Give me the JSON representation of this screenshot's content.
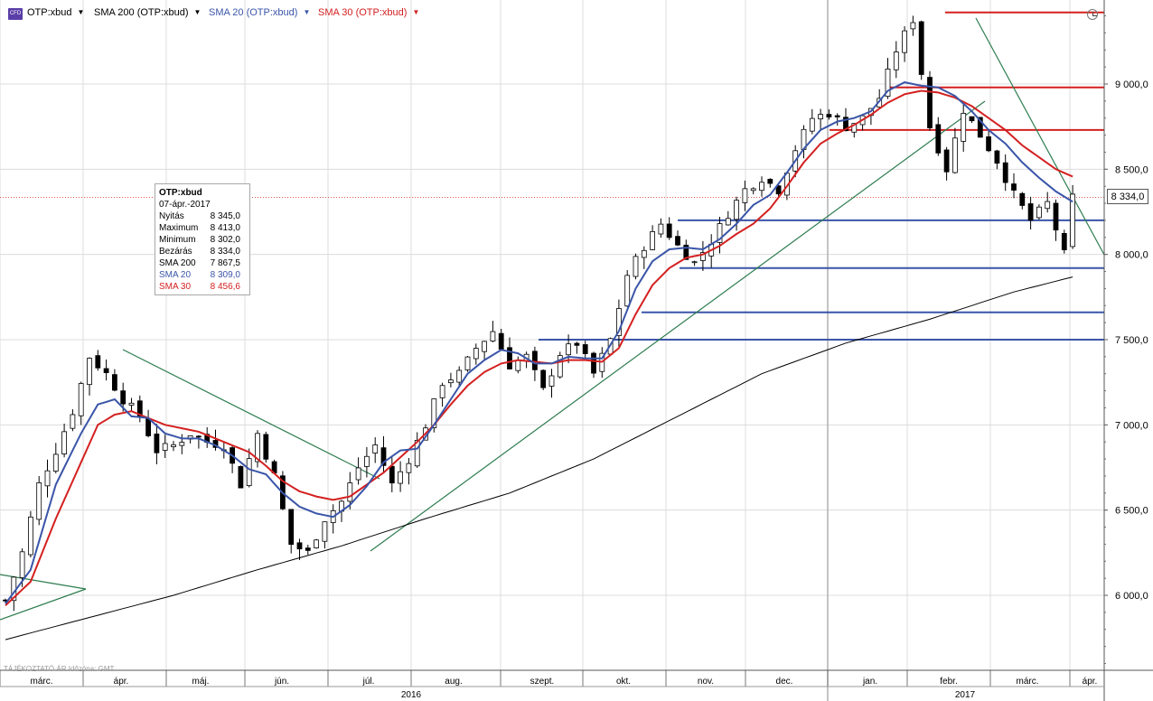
{
  "toolbar": {
    "logo_text": "CFD",
    "tickers": [
      {
        "label": "OTP:xbud",
        "color": "#000000"
      },
      {
        "label": "SMA 200 (OTP:xbud)",
        "color": "#000000"
      },
      {
        "label": "SMA 20 (OTP:xbud)",
        "color": "#3a55a8"
      },
      {
        "label": "SMA 30 (OTP:xbud)",
        "color": "#d42020"
      }
    ],
    "dropdown_glyph": "▼",
    "clock_icon": "clock-icon"
  },
  "tooltip": {
    "title": "OTP:xbud",
    "date": "07-ápr.-2017",
    "rows": [
      {
        "label": "Nyitás",
        "value": "8 345,0",
        "color": "#000000"
      },
      {
        "label": "Maximum",
        "value": "8 413,0",
        "color": "#000000"
      },
      {
        "label": "Minimum",
        "value": "8 302,0",
        "color": "#000000"
      },
      {
        "label": "Bezárás",
        "value": "8 334,0",
        "color": "#000000"
      },
      {
        "label": "SMA 200",
        "value": "7 867,5",
        "color": "#000000"
      },
      {
        "label": "SMA 20",
        "value": "8 309,0",
        "color": "#3a55a8"
      },
      {
        "label": "SMA 30",
        "value": "8 456,6",
        "color": "#d42020"
      }
    ]
  },
  "footer_note": "TÁJÉKOZTATÓ ÁR   Időzóna: GMT",
  "price_tag": "8 334,0",
  "chart_data": {
    "type": "line",
    "instrument": "OTP:xbud",
    "y_ticks": [
      "6 000,0",
      "6 500,0",
      "7 000,0",
      "7 500,0",
      "8 000,0",
      "8 500,0",
      "9 000,0"
    ],
    "y_tick_values": [
      6000,
      6500,
      7000,
      7500,
      8000,
      8500,
      9000
    ],
    "ylim": [
      5530,
      9480
    ],
    "x_months": [
      "márc.",
      "ápr.",
      "máj.",
      "jún.",
      "júl.",
      "aug.",
      "szept.",
      "okt.",
      "nov.",
      "dec.",
      "jan.",
      "febr.",
      "márc.",
      "ápr."
    ],
    "x_years": [
      "2016",
      "2017"
    ],
    "last_close": 8334,
    "colors": {
      "price": "#000000",
      "sma200": "#000000",
      "sma20": "#3a55a8",
      "sma30": "#d42020",
      "horizontal_blue": "#3a55a8",
      "horizontal_red": "#d42020",
      "trendline": "#2e7d4f",
      "candle_up": "#ffffff",
      "candle_down": "#000000"
    },
    "close_path": [
      [
        0,
        5970
      ],
      [
        2,
        6250
      ],
      [
        4,
        6650
      ],
      [
        6,
        6850
      ],
      [
        8,
        7080
      ],
      [
        10,
        7400
      ],
      [
        12,
        7300
      ],
      [
        14,
        7150
      ],
      [
        16,
        7050
      ],
      [
        18,
        6850
      ],
      [
        20,
        6880
      ],
      [
        22,
        6950
      ],
      [
        24,
        6900
      ],
      [
        26,
        6880
      ],
      [
        28,
        6650
      ],
      [
        30,
        6950
      ],
      [
        32,
        6700
      ],
      [
        34,
        6300
      ],
      [
        36,
        6250
      ],
      [
        38,
        6450
      ],
      [
        40,
        6550
      ],
      [
        42,
        6750
      ],
      [
        44,
        6880
      ],
      [
        46,
        6650
      ],
      [
        48,
        6800
      ],
      [
        50,
        7000
      ],
      [
        52,
        7250
      ],
      [
        54,
        7300
      ],
      [
        56,
        7450
      ],
      [
        58,
        7550
      ],
      [
        60,
        7350
      ],
      [
        62,
        7400
      ],
      [
        64,
        7200
      ],
      [
        66,
        7420
      ],
      [
        68,
        7480
      ],
      [
        70,
        7300
      ],
      [
        72,
        7500
      ],
      [
        74,
        7880
      ],
      [
        76,
        8050
      ],
      [
        78,
        8180
      ],
      [
        80,
        8050
      ],
      [
        82,
        7950
      ],
      [
        84,
        8080
      ],
      [
        86,
        8240
      ],
      [
        88,
        8380
      ],
      [
        90,
        8450
      ],
      [
        92,
        8380
      ],
      [
        94,
        8620
      ],
      [
        96,
        8800
      ],
      [
        98,
        8830
      ],
      [
        100,
        8750
      ],
      [
        102,
        8800
      ],
      [
        104,
        8920
      ],
      [
        106,
        9200
      ],
      [
        108,
        9380
      ],
      [
        110,
        8750
      ],
      [
        112,
        8500
      ],
      [
        114,
        8850
      ],
      [
        116,
        8700
      ],
      [
        118,
        8550
      ],
      [
        120,
        8350
      ],
      [
        122,
        8200
      ],
      [
        124,
        8300
      ],
      [
        126,
        8000
      ],
      [
        127,
        8334
      ]
    ],
    "sma20_path": [
      [
        0,
        5950
      ],
      [
        3,
        6150
      ],
      [
        6,
        6650
      ],
      [
        9,
        6950
      ],
      [
        11,
        7120
      ],
      [
        13,
        7150
      ],
      [
        15,
        7050
      ],
      [
        17,
        7040
      ],
      [
        19,
        6950
      ],
      [
        21,
        6920
      ],
      [
        23,
        6920
      ],
      [
        25,
        6880
      ],
      [
        27,
        6820
      ],
      [
        29,
        6740
      ],
      [
        31,
        6710
      ],
      [
        33,
        6600
      ],
      [
        35,
        6520
      ],
      [
        37,
        6480
      ],
      [
        39,
        6460
      ],
      [
        41,
        6530
      ],
      [
        43,
        6640
      ],
      [
        45,
        6780
      ],
      [
        47,
        6850
      ],
      [
        49,
        6860
      ],
      [
        51,
        7000
      ],
      [
        53,
        7150
      ],
      [
        55,
        7300
      ],
      [
        57,
        7380
      ],
      [
        59,
        7440
      ],
      [
        61,
        7420
      ],
      [
        63,
        7360
      ],
      [
        65,
        7360
      ],
      [
        67,
        7400
      ],
      [
        69,
        7390
      ],
      [
        71,
        7390
      ],
      [
        73,
        7550
      ],
      [
        75,
        7800
      ],
      [
        77,
        7960
      ],
      [
        79,
        8030
      ],
      [
        81,
        8040
      ],
      [
        83,
        8030
      ],
      [
        85,
        8090
      ],
      [
        87,
        8180
      ],
      [
        89,
        8290
      ],
      [
        91,
        8350
      ],
      [
        93,
        8480
      ],
      [
        95,
        8620
      ],
      [
        97,
        8730
      ],
      [
        99,
        8780
      ],
      [
        101,
        8800
      ],
      [
        103,
        8840
      ],
      [
        105,
        8960
      ],
      [
        107,
        9010
      ],
      [
        109,
        8990
      ],
      [
        111,
        8980
      ],
      [
        113,
        8930
      ],
      [
        115,
        8840
      ],
      [
        117,
        8730
      ],
      [
        119,
        8650
      ],
      [
        121,
        8540
      ],
      [
        123,
        8450
      ],
      [
        125,
        8370
      ],
      [
        127,
        8309
      ]
    ],
    "sma30_path": [
      [
        0,
        5940
      ],
      [
        3,
        6080
      ],
      [
        6,
        6450
      ],
      [
        9,
        6780
      ],
      [
        11,
        7000
      ],
      [
        13,
        7060
      ],
      [
        15,
        7080
      ],
      [
        17,
        7040
      ],
      [
        19,
        7000
      ],
      [
        21,
        6980
      ],
      [
        23,
        6960
      ],
      [
        25,
        6920
      ],
      [
        27,
        6880
      ],
      [
        29,
        6840
      ],
      [
        31,
        6760
      ],
      [
        33,
        6670
      ],
      [
        35,
        6610
      ],
      [
        37,
        6580
      ],
      [
        39,
        6560
      ],
      [
        41,
        6580
      ],
      [
        43,
        6650
      ],
      [
        45,
        6720
      ],
      [
        47,
        6810
      ],
      [
        49,
        6900
      ],
      [
        51,
        7000
      ],
      [
        53,
        7120
      ],
      [
        55,
        7230
      ],
      [
        57,
        7310
      ],
      [
        59,
        7360
      ],
      [
        61,
        7380
      ],
      [
        63,
        7370
      ],
      [
        65,
        7360
      ],
      [
        67,
        7380
      ],
      [
        69,
        7380
      ],
      [
        71,
        7370
      ],
      [
        73,
        7450
      ],
      [
        75,
        7650
      ],
      [
        77,
        7820
      ],
      [
        79,
        7920
      ],
      [
        81,
        7980
      ],
      [
        83,
        8000
      ],
      [
        85,
        8050
      ],
      [
        87,
        8120
      ],
      [
        89,
        8180
      ],
      [
        91,
        8270
      ],
      [
        93,
        8400
      ],
      [
        95,
        8540
      ],
      [
        97,
        8650
      ],
      [
        99,
        8710
      ],
      [
        101,
        8760
      ],
      [
        103,
        8820
      ],
      [
        105,
        8890
      ],
      [
        107,
        8940
      ],
      [
        109,
        8960
      ],
      [
        111,
        8950
      ],
      [
        113,
        8920
      ],
      [
        115,
        8870
      ],
      [
        117,
        8800
      ],
      [
        119,
        8730
      ],
      [
        121,
        8640
      ],
      [
        123,
        8570
      ],
      [
        125,
        8500
      ],
      [
        127,
        8457
      ]
    ],
    "sma200_path": [
      [
        0,
        5740
      ],
      [
        10,
        5870
      ],
      [
        20,
        6000
      ],
      [
        30,
        6150
      ],
      [
        40,
        6290
      ],
      [
        50,
        6450
      ],
      [
        60,
        6600
      ],
      [
        70,
        6800
      ],
      [
        80,
        7050
      ],
      [
        90,
        7300
      ],
      [
        100,
        7480
      ],
      [
        110,
        7620
      ],
      [
        120,
        7780
      ],
      [
        127,
        7868
      ]
    ],
    "support_resistance_levels": [
      {
        "value": 9420,
        "color": "red"
      },
      {
        "value": 8980,
        "color": "red"
      },
      {
        "value": 8730,
        "color": "red"
      },
      {
        "value": 8200,
        "color": "blue"
      },
      {
        "value": 7920,
        "color": "blue"
      },
      {
        "value": 7660,
        "color": "blue"
      },
      {
        "value": 7500,
        "color": "blue"
      }
    ]
  }
}
